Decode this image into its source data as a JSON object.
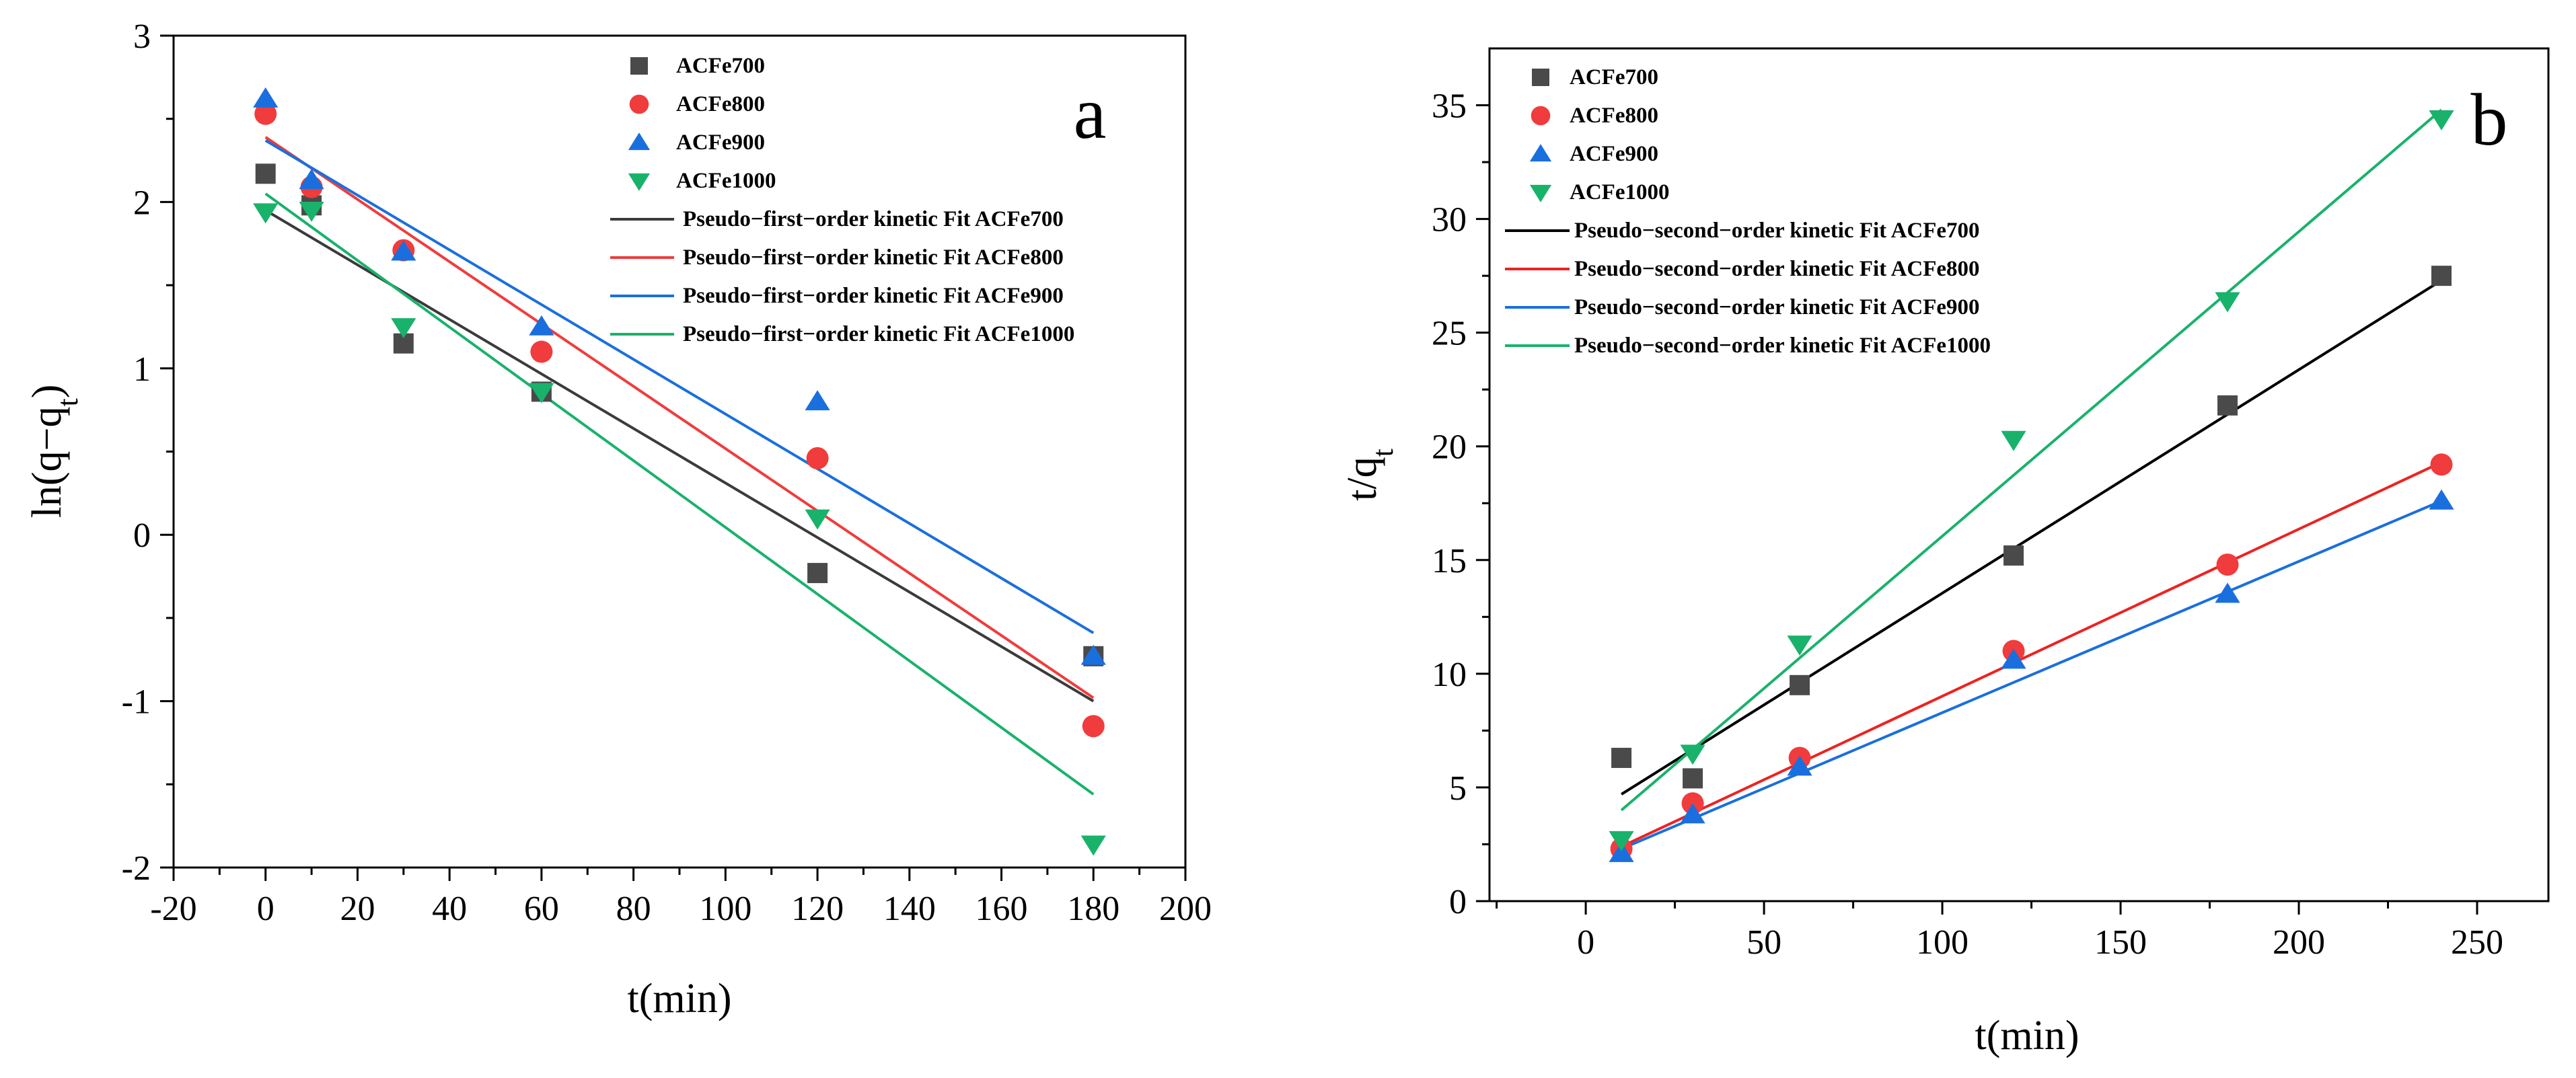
{
  "chart_data": [
    {
      "type": "scatter",
      "panel_label": "a",
      "title": "",
      "xlabel": "t(min)",
      "ylabel_main": "ln(q−q",
      "ylabel_sub": "t",
      "ylabel_tail": ")",
      "xlim": [
        -20,
        200
      ],
      "ylim": [
        -2,
        3
      ],
      "xticks": [
        -20,
        0,
        20,
        40,
        60,
        80,
        100,
        120,
        140,
        160,
        180,
        200
      ],
      "yticks": [
        -2,
        -1,
        0,
        1,
        2,
        3
      ],
      "xtick_labels": [
        "-20",
        "0",
        "20",
        "40",
        "60",
        "80",
        "100",
        "120",
        "140",
        "160",
        "180",
        "200"
      ],
      "ytick_labels": [
        "-2",
        "-1",
        "0",
        "1",
        "2",
        "3"
      ],
      "series": [
        {
          "name": "ACFe700",
          "marker": "square",
          "color": "#4a4a4a",
          "x": [
            0,
            10,
            30,
            60,
            120,
            180
          ],
          "y": [
            2.17,
            1.98,
            1.15,
            0.86,
            -0.23,
            -0.73
          ]
        },
        {
          "name": "ACFe800",
          "marker": "circle",
          "color": "#f03c3c",
          "x": [
            0,
            10,
            30,
            60,
            120,
            180
          ],
          "y": [
            2.53,
            2.09,
            1.71,
            1.1,
            0.46,
            -1.15
          ]
        },
        {
          "name": "ACFe900",
          "marker": "triangle-up",
          "color": "#1a6fde",
          "x": [
            0,
            10,
            30,
            60,
            120,
            180
          ],
          "y": [
            2.62,
            2.13,
            1.7,
            1.25,
            0.8,
            -0.73
          ]
        },
        {
          "name": "ACFe1000",
          "marker": "triangle-down",
          "color": "#19b26b",
          "x": [
            0,
            10,
            30,
            60,
            120,
            180
          ],
          "y": [
            1.94,
            1.95,
            1.25,
            0.86,
            0.1,
            -1.86
          ]
        }
      ],
      "fits": [
        {
          "name": "Pseudo−first−order kinetic Fit ACFe700",
          "color": "#3b3b3b",
          "x": [
            0,
            180
          ],
          "y": [
            1.95,
            -1.0
          ]
        },
        {
          "name": "Pseudo−first−order kinetic Fit ACFe800",
          "color": "#f03c3c",
          "x": [
            0,
            180
          ],
          "y": [
            2.39,
            -0.98
          ]
        },
        {
          "name": "Pseudo−first−order kinetic Fit ACFe900",
          "color": "#1a6fde",
          "x": [
            0,
            180
          ],
          "y": [
            2.37,
            -0.59
          ]
        },
        {
          "name": "Pseudo−first−order kinetic Fit ACFe1000",
          "color": "#19b26b",
          "x": [
            0,
            180
          ],
          "y": [
            2.05,
            -1.56
          ]
        }
      ],
      "legend_position": "top-right"
    },
    {
      "type": "scatter",
      "panel_label": "b",
      "title": "",
      "xlabel": "t(min)",
      "ylabel_main": "t/q",
      "ylabel_sub": "t",
      "ylabel_tail": "",
      "xlim": [
        -27,
        270
      ],
      "ylim": [
        0,
        37.5
      ],
      "xticks": [
        0,
        50,
        100,
        150,
        200,
        250
      ],
      "yticks": [
        0,
        5,
        10,
        15,
        20,
        25,
        30,
        35
      ],
      "xtick_labels": [
        "0",
        "50",
        "100",
        "150",
        "200",
        "250"
      ],
      "ytick_labels": [
        "0",
        "5",
        "10",
        "15",
        "20",
        "25",
        "30",
        "35"
      ],
      "series": [
        {
          "name": "ACFe700",
          "marker": "square",
          "color": "#4a4a4a",
          "x": [
            10,
            30,
            60,
            120,
            180,
            240
          ],
          "y": [
            6.3,
            5.4,
            9.5,
            15.2,
            21.8,
            27.5
          ]
        },
        {
          "name": "ACFe800",
          "marker": "circle",
          "color": "#f03c3c",
          "x": [
            10,
            30,
            60,
            120,
            180,
            240
          ],
          "y": [
            2.3,
            4.3,
            6.3,
            11.0,
            14.8,
            19.2
          ]
        },
        {
          "name": "ACFe900",
          "marker": "triangle-up",
          "color": "#1a6fde",
          "x": [
            10,
            30,
            60,
            120,
            180,
            240
          ],
          "y": [
            2.1,
            3.8,
            5.9,
            10.6,
            13.5,
            17.6
          ]
        },
        {
          "name": "ACFe1000",
          "marker": "triangle-down",
          "color": "#19b26b",
          "x": [
            10,
            30,
            60,
            120,
            180,
            240
          ],
          "y": [
            2.7,
            6.5,
            11.3,
            20.3,
            26.4,
            34.4
          ]
        }
      ],
      "fits": [
        {
          "name": "Pseudo−second−order kinetic Fit ACFe700",
          "color": "#000000",
          "x": [
            10,
            240
          ],
          "y": [
            4.7,
            27.3
          ]
        },
        {
          "name": "Pseudo−second−order kinetic Fit ACFe800",
          "color": "#ee2222",
          "x": [
            10,
            240
          ],
          "y": [
            2.4,
            19.3
          ]
        },
        {
          "name": "Pseudo−second−order kinetic Fit ACFe900",
          "color": "#1a6fde",
          "x": [
            10,
            240
          ],
          "y": [
            2.3,
            17.6
          ]
        },
        {
          "name": "Pseudo−second−order kinetic Fit ACFe1000",
          "color": "#19b26b",
          "x": [
            10,
            240
          ],
          "y": [
            4.0,
            34.8
          ]
        }
      ],
      "legend_position": "top-left"
    }
  ]
}
